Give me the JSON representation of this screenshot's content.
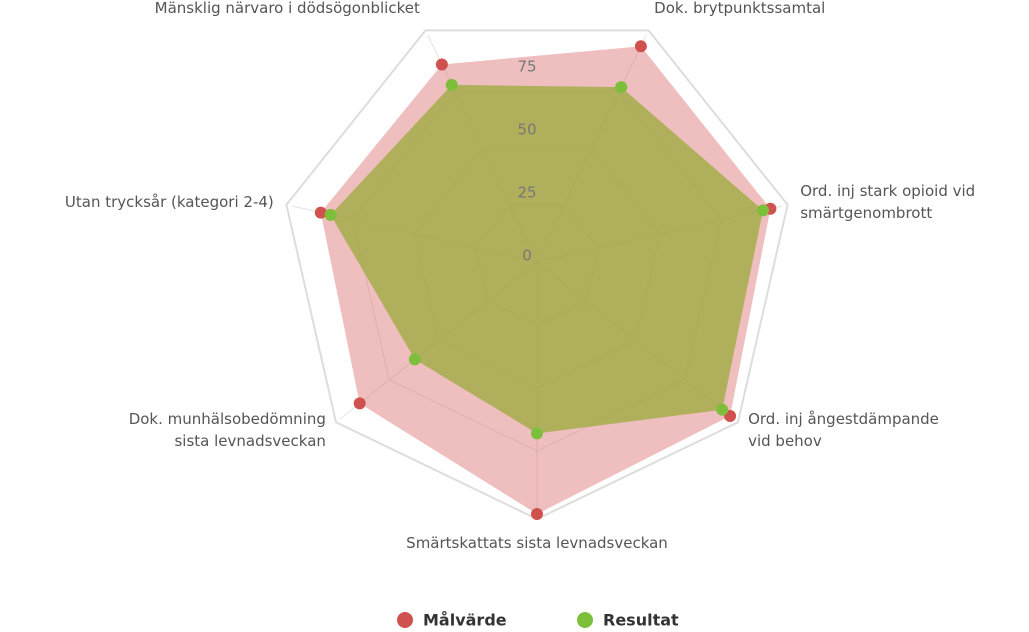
{
  "chart_data": {
    "type": "radar",
    "categories": [
      "Dok. brytpunktssamtal",
      "Ord. inj stark opioid vid\nsmärtgenombrott",
      "Ord. inj ångestdämpande\nvid behov",
      "Smärtskattats sista levnadsveckan",
      "Dok. munhälsobedömning\nsista levnadsveckan",
      "Utan trycksår (kategori 2-4)",
      "Mänsklig närvaro i dödsögonblicket"
    ],
    "series": [
      {
        "name": "Målvärde",
        "color": "#d0524e",
        "values": [
          95,
          95,
          98,
          100,
          90,
          88,
          87
        ]
      },
      {
        "name": "Resultat",
        "color": "#7dbf3a",
        "values": [
          77,
          92,
          94,
          68,
          62,
          84,
          78
        ]
      }
    ],
    "ylim": [
      0,
      100
    ],
    "yticks": [
      0,
      25,
      50,
      75
    ],
    "grid": true
  }
}
